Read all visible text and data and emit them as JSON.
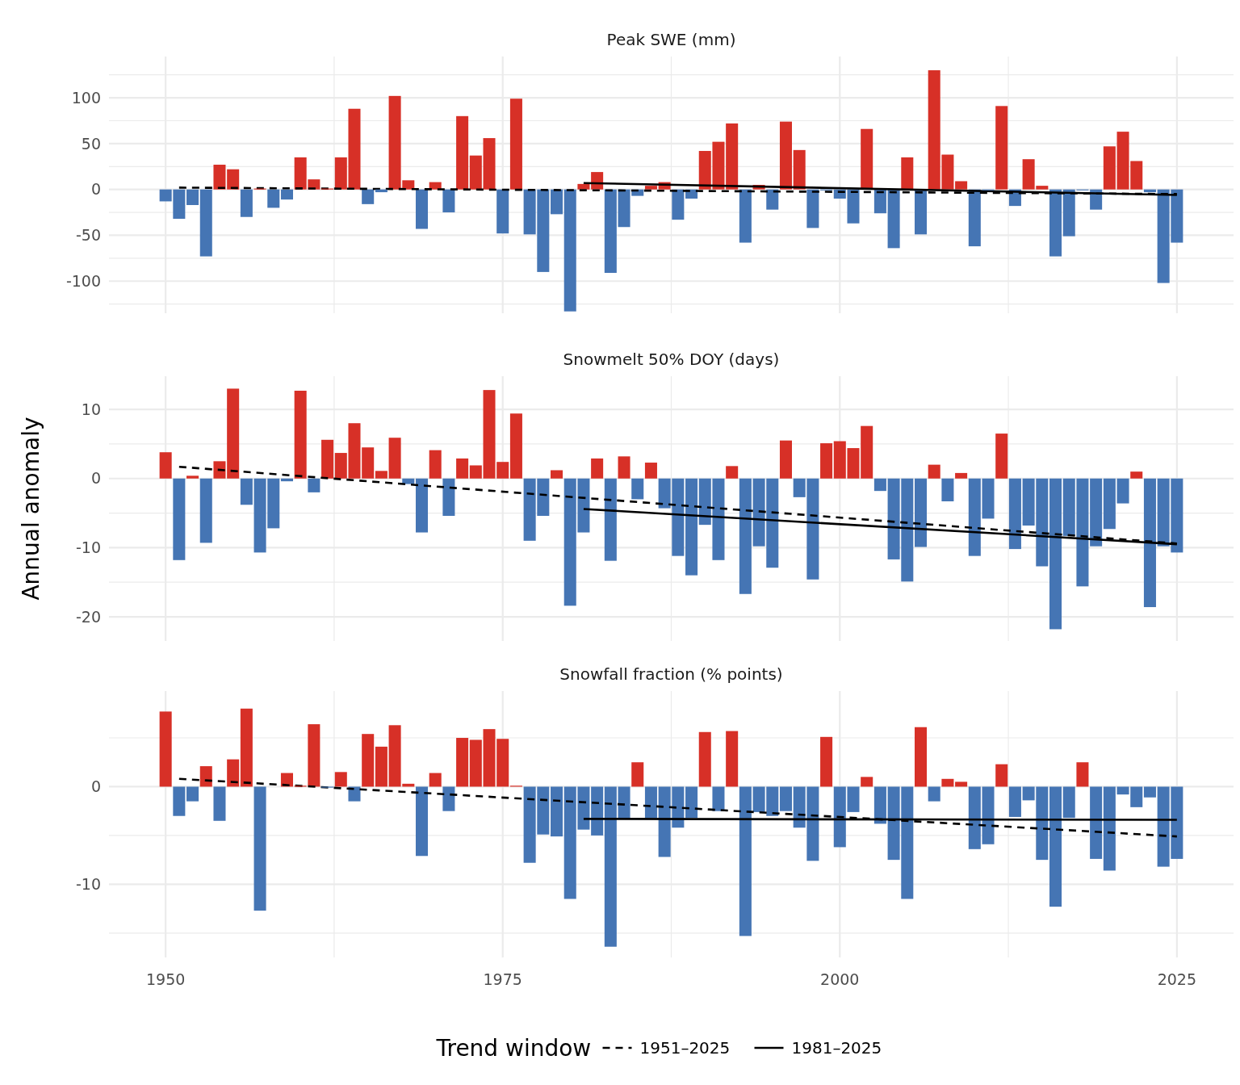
{
  "chart_data": [
    {
      "type": "bar",
      "title": "Peak SWE (mm)",
      "x": [
        1950,
        1951,
        1952,
        1953,
        1954,
        1955,
        1956,
        1957,
        1958,
        1959,
        1960,
        1961,
        1962,
        1963,
        1964,
        1965,
        1966,
        1967,
        1968,
        1969,
        1970,
        1971,
        1972,
        1973,
        1974,
        1975,
        1976,
        1977,
        1978,
        1979,
        1980,
        1981,
        1982,
        1983,
        1984,
        1985,
        1986,
        1987,
        1988,
        1989,
        1990,
        1991,
        1992,
        1993,
        1994,
        1995,
        1996,
        1997,
        1998,
        1999,
        2000,
        2001,
        2002,
        2003,
        2004,
        2005,
        2006,
        2007,
        2008,
        2009,
        2010,
        2011,
        2012,
        2013,
        2014,
        2015,
        2016,
        2017,
        2018,
        2019,
        2020,
        2021,
        2022,
        2023,
        2024,
        2025
      ],
      "series": [
        {
          "values": [
            -13,
            -32,
            -17,
            -73,
            27,
            22,
            -30,
            1,
            -20,
            -11,
            35,
            11,
            1,
            35,
            88,
            -16,
            -3,
            102,
            10,
            -43,
            8,
            -25,
            80,
            37,
            56,
            -48,
            99,
            -49,
            -90,
            -27,
            -133,
            6,
            19,
            -91,
            -41,
            -7,
            4,
            8,
            -33,
            -10,
            42,
            52,
            72,
            -58,
            5,
            -22,
            74,
            43,
            -42,
            -1,
            -10,
            -37,
            66,
            -26,
            -64,
            35,
            -49,
            130,
            38,
            9,
            -62,
            -1,
            91,
            -18,
            33,
            4,
            -73,
            -51,
            -1,
            -22,
            47,
            63,
            31,
            -3,
            -102,
            -58
          ],
          "colors": [
            "#4575b4",
            "#4575b4",
            "#4575b4",
            "#4575b4",
            "#d73027",
            "#d73027",
            "#4575b4",
            "#d73027",
            "#4575b4",
            "#4575b4",
            "#d73027",
            "#d73027",
            "#d73027",
            "#d73027",
            "#d73027",
            "#4575b4",
            "#4575b4",
            "#d73027",
            "#d73027",
            "#4575b4",
            "#d73027",
            "#4575b4",
            "#d73027",
            "#d73027",
            "#d73027",
            "#4575b4",
            "#d73027",
            "#4575b4",
            "#4575b4",
            "#4575b4",
            "#4575b4",
            "#d73027",
            "#d73027",
            "#4575b4",
            "#4575b4",
            "#4575b4",
            "#d73027",
            "#d73027",
            "#4575b4",
            "#4575b4",
            "#d73027",
            "#d73027",
            "#d73027",
            "#4575b4",
            "#d73027",
            "#4575b4",
            "#d73027",
            "#d73027",
            "#4575b4",
            "#4575b4",
            "#4575b4",
            "#4575b4",
            "#d73027",
            "#4575b4",
            "#4575b4",
            "#d73027",
            "#4575b4",
            "#d73027",
            "#d73027",
            "#d73027",
            "#4575b4",
            "#4575b4",
            "#d73027",
            "#4575b4",
            "#d73027",
            "#d73027",
            "#4575b4",
            "#4575b4",
            "#4575b4",
            "#4575b4",
            "#d73027",
            "#d73027",
            "#d73027",
            "#4575b4",
            "#4575b4",
            "#4575b4"
          ]
        },
        {
          "type": "line",
          "x": [
            1951,
            2025
          ],
          "values": [
            2,
            -5
          ],
          "color": "#000000",
          "line_style": "dashed"
        },
        {
          "type": "line",
          "x": [
            1981,
            2025
          ],
          "values": [
            7,
            -6
          ],
          "color": "#000000",
          "line_style": "solid"
        }
      ],
      "xlim": [
        1945.8,
        2029.2
      ],
      "xticks": [
        1950,
        {
          "value": 1962.5,
          "label": null
        },
        1975,
        {
          "value": 1987.5,
          "label": null
        },
        2000,
        {
          "value": 2012.5,
          "label": null
        },
        2025
      ],
      "ylim": [
        -135,
        145
      ],
      "yticks": [
        {
          "value": -125,
          "label": null
        },
        -100,
        {
          "value": -75,
          "label": null
        },
        -50,
        {
          "value": -25,
          "label": null
        },
        0,
        {
          "value": 25,
          "label": null
        },
        50,
        {
          "value": 75,
          "label": null
        },
        100,
        {
          "value": 125,
          "label": null
        }
      ],
      "grid": true,
      "tick_labels": "y"
    },
    {
      "type": "bar",
      "title": "Snowmelt 50% DOY (days)",
      "ylabel": "Annual anomaly",
      "x": [
        1950,
        1951,
        1952,
        1953,
        1954,
        1955,
        1956,
        1957,
        1958,
        1959,
        1960,
        1961,
        1962,
        1963,
        1964,
        1965,
        1966,
        1967,
        1968,
        1969,
        1970,
        1971,
        1972,
        1973,
        1974,
        1975,
        1976,
        1977,
        1978,
        1979,
        1980,
        1981,
        1982,
        1983,
        1984,
        1985,
        1986,
        1987,
        1988,
        1989,
        1990,
        1991,
        1992,
        1993,
        1994,
        1995,
        1996,
        1997,
        1998,
        1999,
        2000,
        2001,
        2002,
        2003,
        2004,
        2005,
        2006,
        2007,
        2008,
        2009,
        2010,
        2011,
        2012,
        2013,
        2014,
        2015,
        2016,
        2017,
        2018,
        2019,
        2020,
        2021,
        2022,
        2023,
        2024,
        2025
      ],
      "series": [
        {
          "values": [
            3.8,
            -11.8,
            0.4,
            -9.3,
            2.5,
            13.0,
            -3.8,
            -10.7,
            -7.2,
            -0.4,
            12.7,
            -2.0,
            5.6,
            3.7,
            8.0,
            4.5,
            1.1,
            5.9,
            -0.8,
            -7.8,
            4.1,
            -5.4,
            2.9,
            1.9,
            12.8,
            2.4,
            9.4,
            -9.0,
            -5.4,
            1.2,
            -18.4,
            -7.8,
            2.9,
            -11.9,
            3.2,
            -3.0,
            2.3,
            -4.3,
            -11.2,
            -14.0,
            -6.7,
            -11.8,
            1.8,
            -16.7,
            -9.8,
            -12.9,
            5.5,
            -2.7,
            -14.6,
            5.1,
            5.4,
            4.4,
            7.6,
            -1.8,
            -11.7,
            -14.9,
            -9.9,
            2.0,
            -3.3,
            0.8,
            -11.2,
            -5.8,
            6.5,
            -10.2,
            -6.8,
            -12.7,
            -21.8,
            -8.3,
            -15.6,
            -9.8,
            -7.3,
            -3.6,
            1.0,
            -18.6,
            -9.8,
            -10.7
          ],
          "colors": [
            "#d73027",
            "#4575b4",
            "#d73027",
            "#4575b4",
            "#d73027",
            "#d73027",
            "#4575b4",
            "#4575b4",
            "#4575b4",
            "#4575b4",
            "#d73027",
            "#4575b4",
            "#d73027",
            "#d73027",
            "#d73027",
            "#d73027",
            "#d73027",
            "#d73027",
            "#4575b4",
            "#4575b4",
            "#d73027",
            "#4575b4",
            "#d73027",
            "#d73027",
            "#d73027",
            "#d73027",
            "#d73027",
            "#4575b4",
            "#4575b4",
            "#d73027",
            "#4575b4",
            "#4575b4",
            "#d73027",
            "#4575b4",
            "#d73027",
            "#4575b4",
            "#d73027",
            "#4575b4",
            "#4575b4",
            "#4575b4",
            "#4575b4",
            "#4575b4",
            "#d73027",
            "#4575b4",
            "#4575b4",
            "#4575b4",
            "#d73027",
            "#4575b4",
            "#4575b4",
            "#d73027",
            "#d73027",
            "#d73027",
            "#d73027",
            "#4575b4",
            "#4575b4",
            "#4575b4",
            "#4575b4",
            "#d73027",
            "#4575b4",
            "#d73027",
            "#4575b4",
            "#4575b4",
            "#d73027",
            "#4575b4",
            "#4575b4",
            "#4575b4",
            "#4575b4",
            "#4575b4",
            "#4575b4",
            "#4575b4",
            "#4575b4",
            "#4575b4",
            "#d73027",
            "#4575b4",
            "#4575b4",
            "#4575b4"
          ]
        },
        {
          "type": "line",
          "x": [
            1951,
            2025
          ],
          "values": [
            1.7,
            -9.4
          ],
          "color": "#000000",
          "line_style": "dashed"
        },
        {
          "type": "line",
          "x": [
            1981,
            2025
          ],
          "values": [
            -4.4,
            -9.5
          ],
          "color": "#000000",
          "line_style": "solid"
        }
      ],
      "xlim": [
        1945.8,
        2029.2
      ],
      "xticks": [
        1950,
        {
          "value": 1962.5,
          "label": null
        },
        1975,
        {
          "value": 1987.5,
          "label": null
        },
        2000,
        {
          "value": 2012.5,
          "label": null
        },
        2025
      ],
      "ylim": [
        -23.5,
        14.8
      ],
      "yticks": [
        -20,
        {
          "value": -15,
          "label": null
        },
        -10,
        {
          "value": -5,
          "label": null
        },
        0,
        {
          "value": 5,
          "label": null
        },
        10
      ],
      "grid": true,
      "tick_labels": "y"
    },
    {
      "type": "bar",
      "title": "Snowfall fraction (% points)",
      "x": [
        1950,
        1951,
        1952,
        1953,
        1954,
        1955,
        1956,
        1957,
        1958,
        1959,
        1960,
        1961,
        1962,
        1963,
        1964,
        1965,
        1966,
        1967,
        1968,
        1969,
        1970,
        1971,
        1972,
        1973,
        1974,
        1975,
        1976,
        1977,
        1978,
        1979,
        1980,
        1981,
        1982,
        1983,
        1984,
        1985,
        1986,
        1987,
        1988,
        1989,
        1990,
        1991,
        1992,
        1993,
        1994,
        1995,
        1996,
        1997,
        1998,
        1999,
        2000,
        2001,
        2002,
        2003,
        2004,
        2005,
        2006,
        2007,
        2008,
        2009,
        2010,
        2011,
        2012,
        2013,
        2014,
        2015,
        2016,
        2017,
        2018,
        2019,
        2020,
        2021,
        2022,
        2023,
        2024,
        2025
      ],
      "series": [
        {
          "values": [
            7.7,
            -3.0,
            -1.5,
            2.1,
            -3.5,
            2.8,
            8.0,
            -12.7,
            0,
            1.4,
            0.1,
            6.4,
            -0.1,
            1.5,
            -1.5,
            5.4,
            4.1,
            6.3,
            0.3,
            -7.1,
            1.4,
            -2.5,
            5.0,
            4.8,
            5.9,
            4.9,
            0.1,
            -7.8,
            -4.9,
            -5.1,
            -11.5,
            -4.4,
            -5.0,
            -16.4,
            -3.3,
            2.5,
            -3.2,
            -7.2,
            -4.2,
            -3.2,
            5.6,
            -2.5,
            5.7,
            -15.3,
            -2.6,
            -3.0,
            -2.5,
            -4.2,
            -7.6,
            5.1,
            -6.2,
            -2.6,
            1.0,
            -3.8,
            -7.5,
            -11.5,
            6.1,
            -1.5,
            0.8,
            0.5,
            -6.4,
            -5.9,
            2.3,
            -3.1,
            -1.4,
            -7.5,
            -12.3,
            -3.2,
            2.5,
            -7.4,
            -8.6,
            -0.8,
            -2.1,
            -1.1,
            -8.2,
            -7.4
          ],
          "colors": [
            "#d73027",
            "#4575b4",
            "#4575b4",
            "#d73027",
            "#4575b4",
            "#d73027",
            "#d73027",
            "#4575b4",
            "#4575b4",
            "#d73027",
            "#d73027",
            "#d73027",
            "#4575b4",
            "#d73027",
            "#4575b4",
            "#d73027",
            "#d73027",
            "#d73027",
            "#d73027",
            "#4575b4",
            "#d73027",
            "#4575b4",
            "#d73027",
            "#d73027",
            "#d73027",
            "#d73027",
            "#d73027",
            "#4575b4",
            "#4575b4",
            "#4575b4",
            "#4575b4",
            "#4575b4",
            "#4575b4",
            "#4575b4",
            "#4575b4",
            "#d73027",
            "#4575b4",
            "#4575b4",
            "#4575b4",
            "#4575b4",
            "#d73027",
            "#4575b4",
            "#d73027",
            "#4575b4",
            "#4575b4",
            "#4575b4",
            "#4575b4",
            "#4575b4",
            "#4575b4",
            "#d73027",
            "#4575b4",
            "#4575b4",
            "#d73027",
            "#4575b4",
            "#4575b4",
            "#4575b4",
            "#d73027",
            "#4575b4",
            "#d73027",
            "#d73027",
            "#4575b4",
            "#4575b4",
            "#d73027",
            "#4575b4",
            "#4575b4",
            "#4575b4",
            "#4575b4",
            "#4575b4",
            "#d73027",
            "#4575b4",
            "#4575b4",
            "#4575b4",
            "#4575b4",
            "#4575b4",
            "#4575b4",
            "#4575b4"
          ]
        },
        {
          "type": "line",
          "name": "1951–2025",
          "x": [
            1951,
            2025
          ],
          "values": [
            0.8,
            -5.1
          ],
          "color": "#000000",
          "line_style": "dashed"
        },
        {
          "type": "line",
          "name": "1981–2025",
          "x": [
            1981,
            2025
          ],
          "values": [
            -3.3,
            -3.4
          ],
          "color": "#000000",
          "line_style": "solid"
        }
      ],
      "xlim": [
        1945.8,
        2029.2
      ],
      "xticks": [
        1950,
        {
          "value": 1962.5,
          "label": null
        },
        1975,
        {
          "value": 1987.5,
          "label": null
        },
        2000,
        {
          "value": 2012.5,
          "label": null
        },
        2025
      ],
      "ylim": [
        -17.5,
        9.8
      ],
      "yticks": [
        {
          "value": -15,
          "label": null
        },
        -10,
        {
          "value": -5,
          "label": null
        },
        0,
        {
          "value": 5,
          "label": null
        }
      ],
      "grid": true,
      "legend": "bottom",
      "legend_title": "Trend window"
    }
  ]
}
